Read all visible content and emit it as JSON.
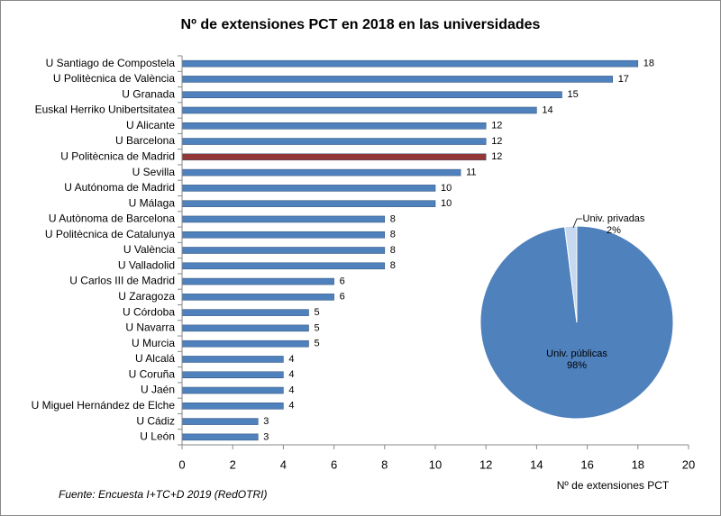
{
  "chart_data": [
    {
      "type": "bar",
      "orientation": "horizontal",
      "title": "Nº de extensiones PCT en 2018 en las universidades",
      "categories": [
        "U Santiago de Compostela",
        "U Politècnica de València",
        "U  Granada",
        "Euskal Herriko Unibertsitatea",
        "U  Alicante",
        "U Barcelona",
        "U Politècnica de Madrid",
        "U  Sevilla",
        "U Autónoma de Madrid",
        "U  Málaga",
        "U Autònoma de Barcelona",
        "U Politècnica de Catalunya",
        "U València",
        "U  Valladolid",
        "U Carlos III de Madrid",
        "U  Zaragoza",
        "U  Córdoba",
        "U  Navarra",
        "U  Murcia",
        "U  Alcalá",
        "U Coruña",
        "U  Jaén",
        "U Miguel Hernández de Elche",
        "U Cádiz",
        "U  León"
      ],
      "values": [
        18,
        17,
        15,
        14,
        12,
        12,
        12,
        11,
        10,
        10,
        8,
        8,
        8,
        8,
        6,
        6,
        5,
        5,
        5,
        4,
        4,
        4,
        4,
        3,
        3
      ],
      "colors": [
        "#4f81bd",
        "#4f81bd",
        "#4f81bd",
        "#4f81bd",
        "#4f81bd",
        "#4f81bd",
        "#953735",
        "#4f81bd",
        "#4f81bd",
        "#4f81bd",
        "#4f81bd",
        "#4f81bd",
        "#4f81bd",
        "#4f81bd",
        "#4f81bd",
        "#4f81bd",
        "#4f81bd",
        "#4f81bd",
        "#4f81bd",
        "#4f81bd",
        "#4f81bd",
        "#4f81bd",
        "#4f81bd",
        "#4f81bd",
        "#4f81bd"
      ],
      "xlim": [
        0,
        20
      ],
      "xticks": [
        0,
        2,
        4,
        6,
        8,
        10,
        12,
        14,
        16,
        18,
        20
      ],
      "xlabel": "Nº de extensiones PCT",
      "note": "Fuente:  Encuesta I+TC+D  2019 (RedOTRI)"
    },
    {
      "type": "pie",
      "categories": [
        "Univ. públicas",
        "Univ. privadas"
      ],
      "values": [
        98,
        2
      ],
      "value_labels": [
        "98%",
        "2%"
      ],
      "colors": [
        "#4f81bd",
        "#c6d9f1"
      ]
    }
  ]
}
